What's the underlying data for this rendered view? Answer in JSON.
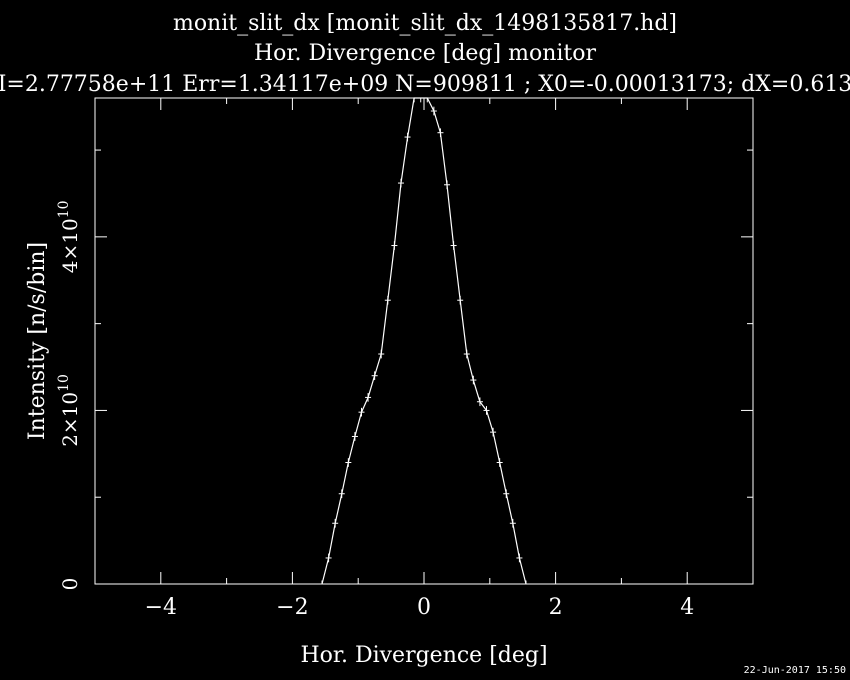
{
  "chart_data": {
    "type": "line",
    "title_lines": [
      "monit_slit_dx [monit_slit_dx_1498135817.hd]",
      "Hor. Divergence [deg] monitor",
      "I=2.77758e+11 Err=1.34117e+09 N=909811 ; X0=-0.00013173; dX=0.613"
    ],
    "xlabel": "Hor. Divergence [deg]",
    "ylabel": "Intensity [n/s/bin]",
    "xlim": [
      -5,
      5
    ],
    "ylim": [
      0,
      56000000000.0
    ],
    "x_ticks": [
      -4,
      -2,
      0,
      2,
      4
    ],
    "x_tick_labels": [
      "−4",
      "−2",
      "0",
      "2",
      "4"
    ],
    "y_ticks": [
      0,
      20000000000.0,
      40000000000.0
    ],
    "y_tick_labels": [
      {
        "text": "0",
        "exp": ""
      },
      {
        "text": "2×10",
        "exp": "10"
      },
      {
        "text": "4×10",
        "exp": "10"
      }
    ],
    "grid": false,
    "timestamp": "22-Jun-2017 15:50",
    "series": [
      {
        "x": [
          -1.55,
          -1.45,
          -1.35,
          -1.25,
          -1.15,
          -1.05,
          -0.95,
          -0.85,
          -0.75,
          -0.65,
          -0.55,
          -0.45,
          -0.35,
          -0.25,
          -0.15,
          -0.05,
          0.05,
          0.15,
          0.25,
          0.35,
          0.45,
          0.55,
          0.65,
          0.75,
          0.85,
          0.95,
          1.05,
          1.15,
          1.25,
          1.35,
          1.45,
          1.55
        ],
        "y": [
          0,
          3000000000.0,
          7000000000.0,
          10400000000.0,
          14000000000.0,
          17000000000.0,
          19800000000.0,
          21500000000.0,
          24000000000.0,
          26500000000.0,
          32700000000.0,
          39000000000.0,
          46200000000.0,
          51500000000.0,
          56000000000.0,
          56000000000.0,
          56000000000.0,
          54500000000.0,
          52000000000.0,
          46000000000.0,
          39000000000.0,
          32700000000.0,
          26500000000.0,
          23500000000.0,
          21000000000.0,
          20000000000.0,
          17500000000.0,
          14000000000.0,
          10400000000.0,
          7000000000.0,
          3000000000.0,
          0
        ],
        "err": [
          400000000.0,
          500000000.0,
          500000000.0,
          500000000.0,
          500000000.0,
          500000000.0,
          500000000.0,
          500000000.0,
          500000000.0,
          500000000.0,
          500000000.0,
          500000000.0,
          500000000.0,
          500000000.0,
          500000000.0,
          500000000.0,
          500000000.0,
          500000000.0,
          500000000.0,
          500000000.0,
          500000000.0,
          500000000.0,
          500000000.0,
          500000000.0,
          500000000.0,
          500000000.0,
          500000000.0,
          500000000.0,
          500000000.0,
          500000000.0,
          500000000.0,
          400000000.0
        ]
      }
    ],
    "colors": {
      "background": "#000000",
      "foreground": "#ffffff"
    }
  }
}
